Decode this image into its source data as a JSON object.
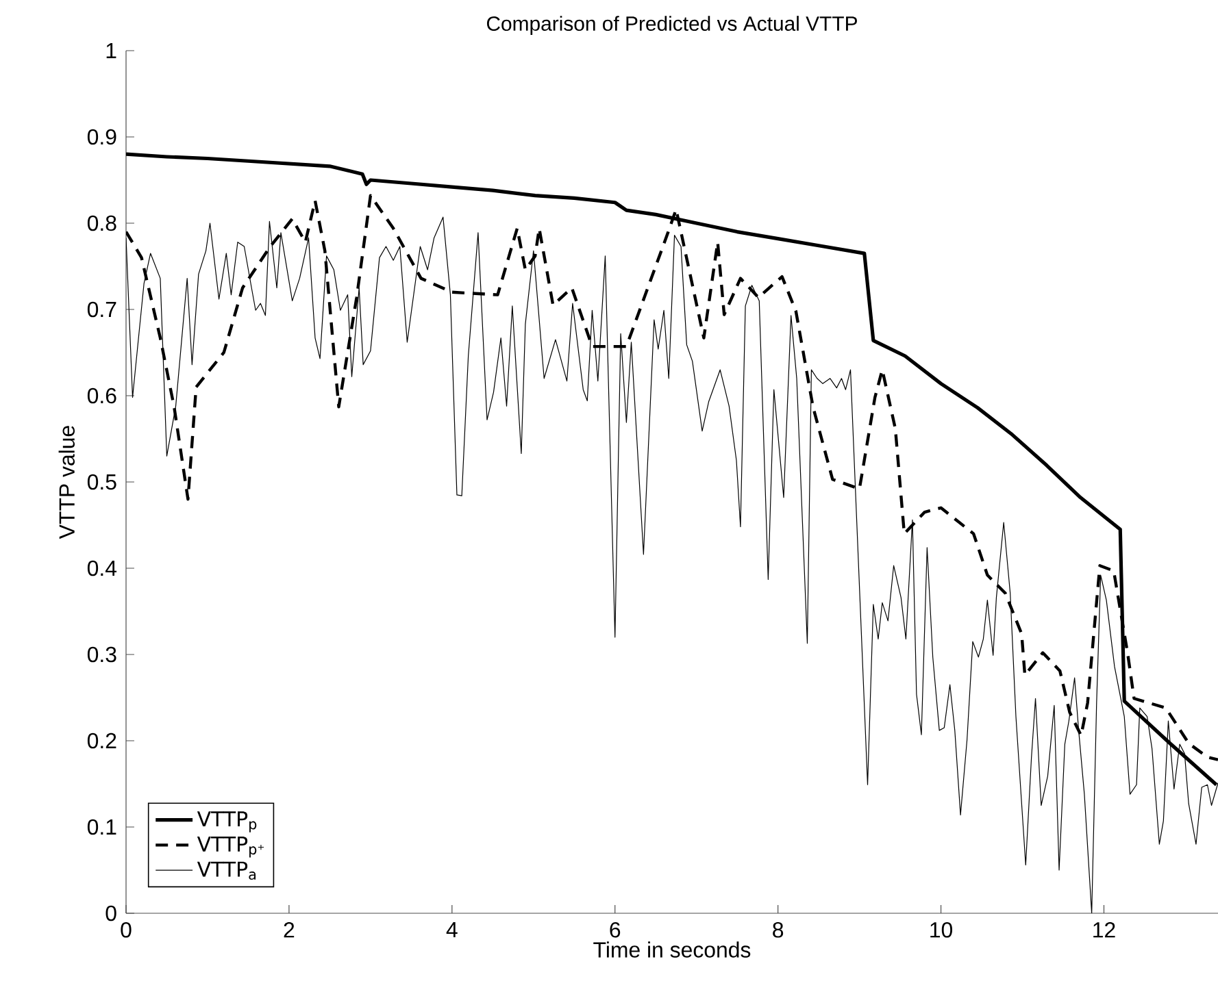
{
  "chart_data": {
    "type": "line",
    "title": "Comparison of Predicted vs Actual VTTP",
    "xlabel": "Time in seconds",
    "ylabel": "VTTP value",
    "xlim": [
      0,
      13.4
    ],
    "ylim": [
      0,
      1
    ],
    "xticks": [
      0,
      2,
      4,
      6,
      8,
      10,
      12
    ],
    "yticks": [
      0,
      0.1,
      0.2,
      0.3,
      0.4,
      0.5,
      0.6,
      0.7,
      0.8,
      0.9,
      1
    ],
    "legend": "bottom left",
    "grid": false,
    "series": [
      {
        "name": "VTTP$_{p}$",
        "color": "#000000",
        "line_style": "solid",
        "x": [
          0,
          0.5,
          1.0,
          1.5,
          2.0,
          2.5,
          2.9,
          2.95,
          3.0,
          3.5,
          4.0,
          4.5,
          5.02,
          5.5,
          6.0,
          6.14,
          6.5,
          7.0,
          7.5,
          8.0,
          8.5,
          9.06,
          9.17,
          9.56,
          10.0,
          10.45,
          10.86,
          11.3,
          11.7,
          12.2,
          12.25,
          12.81,
          13.38
        ],
        "values": [
          0.88,
          0.877,
          0.875,
          0.872,
          0.869,
          0.866,
          0.857,
          0.845,
          0.85,
          0.846,
          0.842,
          0.838,
          0.832,
          0.829,
          0.824,
          0.815,
          0.81,
          0.8,
          0.79,
          0.782,
          0.774,
          0.765,
          0.664,
          0.646,
          0.614,
          0.586,
          0.556,
          0.519,
          0.483,
          0.445,
          0.246,
          0.197,
          0.149
        ]
      },
      {
        "name": "VTTP$_{p⁺}$",
        "color": "#000000",
        "line_style": "dashed",
        "x": [
          0,
          0.19,
          0.42,
          0.59,
          0.76,
          0.86,
          1.2,
          1.43,
          1.77,
          2.04,
          2.2,
          2.32,
          2.44,
          2.61,
          2.83,
          3.0,
          3.28,
          3.62,
          4.0,
          4.56,
          4.8,
          4.9,
          5.02,
          5.07,
          5.24,
          5.47,
          5.72,
          6.14,
          6.65,
          6.75,
          7.09,
          7.26,
          7.34,
          7.54,
          7.76,
          8.05,
          8.22,
          8.43,
          8.67,
          9.0,
          9.19,
          9.28,
          9.44,
          9.55,
          9.8,
          10.0,
          10.4,
          10.57,
          10.79,
          10.99,
          11.03,
          11.25,
          11.46,
          11.58,
          11.72,
          11.8,
          11.95,
          12.12,
          12.29,
          12.37,
          12.76,
          13.04,
          13.27,
          13.4
        ],
        "values": [
          0.79,
          0.76,
          0.667,
          0.587,
          0.48,
          0.61,
          0.65,
          0.725,
          0.773,
          0.805,
          0.778,
          0.826,
          0.768,
          0.587,
          0.714,
          0.832,
          0.794,
          0.736,
          0.72,
          0.717,
          0.794,
          0.746,
          0.762,
          0.794,
          0.705,
          0.725,
          0.657,
          0.657,
          0.789,
          0.816,
          0.667,
          0.778,
          0.694,
          0.736,
          0.714,
          0.738,
          0.698,
          0.587,
          0.503,
          0.492,
          0.598,
          0.63,
          0.562,
          0.44,
          0.465,
          0.47,
          0.44,
          0.392,
          0.371,
          0.324,
          0.276,
          0.302,
          0.281,
          0.233,
          0.206,
          0.244,
          0.403,
          0.397,
          0.302,
          0.249,
          0.238,
          0.197,
          0.181,
          0.178
        ]
      },
      {
        "name": "VTTP$_{a}$",
        "color": "#000000",
        "line_style": "solid",
        "x": [
          0,
          0.08,
          0.22,
          0.3,
          0.42,
          0.5,
          0.61,
          0.75,
          0.81,
          0.89,
          0.98,
          1.03,
          1.14,
          1.23,
          1.29,
          1.37,
          1.45,
          1.54,
          1.59,
          1.65,
          1.71,
          1.76,
          1.85,
          1.9,
          2.04,
          2.13,
          2.24,
          2.32,
          2.38,
          2.46,
          2.55,
          2.63,
          2.72,
          2.77,
          2.86,
          2.91,
          3.0,
          3.11,
          3.19,
          3.28,
          3.36,
          3.45,
          3.61,
          3.7,
          3.78,
          3.89,
          3.98,
          4.06,
          4.12,
          4.2,
          4.32,
          4.43,
          4.51,
          4.6,
          4.67,
          4.74,
          4.85,
          4.9,
          5.0,
          5.13,
          5.27,
          5.41,
          5.48,
          5.61,
          5.66,
          5.72,
          5.79,
          5.88,
          6.0,
          6.07,
          6.14,
          6.2,
          6.35,
          6.48,
          6.53,
          6.6,
          6.66,
          6.73,
          6.81,
          6.88,
          6.95,
          7.07,
          7.15,
          7.29,
          7.4,
          7.49,
          7.54,
          7.6,
          7.68,
          7.77,
          7.88,
          7.95,
          8.07,
          8.16,
          8.23,
          8.36,
          8.41,
          8.48,
          8.55,
          8.64,
          8.72,
          8.78,
          8.83,
          8.89,
          9.1,
          9.17,
          9.23,
          9.28,
          9.35,
          9.42,
          9.51,
          9.57,
          9.65,
          9.7,
          9.76,
          9.83,
          9.9,
          9.98,
          10.04,
          10.11,
          10.17,
          10.24,
          10.32,
          10.39,
          10.46,
          10.52,
          10.57,
          10.64,
          10.68,
          10.77,
          10.85,
          10.92,
          11.04,
          11.11,
          11.16,
          11.23,
          11.31,
          11.39,
          11.45,
          11.52,
          11.57,
          11.64,
          11.69,
          11.76,
          11.85,
          11.91,
          11.96,
          12.03,
          12.13,
          12.25,
          12.32,
          12.4,
          12.44,
          12.53,
          12.59,
          12.68,
          12.73,
          12.79,
          12.86,
          12.93,
          12.99,
          13.04,
          13.13,
          13.2,
          13.27,
          13.32,
          13.4
        ],
        "values": [
          0.783,
          0.598,
          0.73,
          0.765,
          0.736,
          0.53,
          0.588,
          0.736,
          0.636,
          0.741,
          0.768,
          0.8,
          0.712,
          0.765,
          0.717,
          0.778,
          0.773,
          0.725,
          0.699,
          0.707,
          0.693,
          0.802,
          0.725,
          0.789,
          0.71,
          0.736,
          0.783,
          0.667,
          0.643,
          0.762,
          0.746,
          0.699,
          0.717,
          0.622,
          0.725,
          0.636,
          0.652,
          0.76,
          0.773,
          0.757,
          0.773,
          0.662,
          0.773,
          0.746,
          0.783,
          0.807,
          0.717,
          0.485,
          0.484,
          0.646,
          0.789,
          0.572,
          0.604,
          0.667,
          0.588,
          0.704,
          0.533,
          0.683,
          0.768,
          0.62,
          0.665,
          0.617,
          0.707,
          0.607,
          0.594,
          0.699,
          0.617,
          0.762,
          0.32,
          0.672,
          0.569,
          0.662,
          0.416,
          0.688,
          0.654,
          0.699,
          0.62,
          0.786,
          0.773,
          0.659,
          0.64,
          0.559,
          0.593,
          0.63,
          0.588,
          0.525,
          0.448,
          0.704,
          0.728,
          0.71,
          0.387,
          0.607,
          0.482,
          0.693,
          0.62,
          0.313,
          0.63,
          0.62,
          0.614,
          0.62,
          0.609,
          0.62,
          0.607,
          0.63,
          0.149,
          0.358,
          0.318,
          0.36,
          0.339,
          0.403,
          0.366,
          0.318,
          0.456,
          0.254,
          0.207,
          0.424,
          0.297,
          0.212,
          0.215,
          0.265,
          0.212,
          0.114,
          0.201,
          0.315,
          0.297,
          0.318,
          0.363,
          0.299,
          0.366,
          0.453,
          0.371,
          0.228,
          0.056,
          0.18,
          0.249,
          0.125,
          0.159,
          0.241,
          0.05,
          0.196,
          0.223,
          0.273,
          0.212,
          0.138,
          0.0,
          0.244,
          0.392,
          0.363,
          0.286,
          0.228,
          0.138,
          0.149,
          0.238,
          0.228,
          0.191,
          0.08,
          0.107,
          0.223,
          0.144,
          0.196,
          0.185,
          0.127,
          0.08,
          0.146,
          0.149,
          0.125,
          0.151
        ]
      }
    ]
  }
}
